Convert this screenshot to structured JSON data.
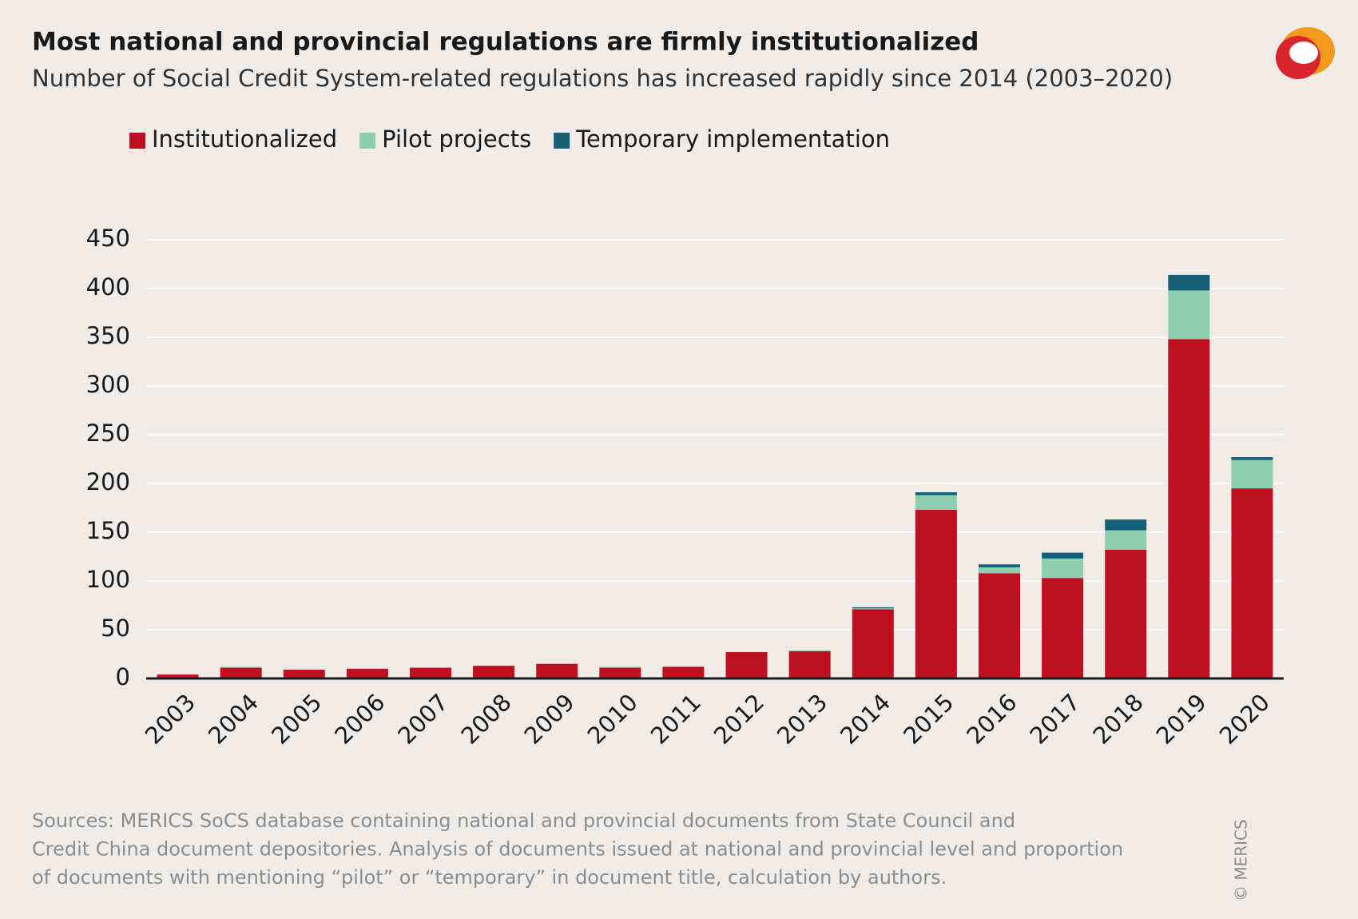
{
  "chart_data": {
    "type": "stacked_bar",
    "title": "Most national and provincial regulations are firmly institutionalized",
    "subtitle": "Number of Social Credit System-related regulations has increased rapidly since 2014 (2003–2020)",
    "categories": [
      "2003",
      "2004",
      "2005",
      "2006",
      "2007",
      "2008",
      "2009",
      "2010",
      "2011",
      "2012",
      "2013",
      "2014",
      "2015",
      "2016",
      "2017",
      "2018",
      "2019",
      "2020"
    ],
    "series": [
      {
        "name": "Institutionalized",
        "color": "#c00f20",
        "values": [
          4,
          11,
          9,
          10,
          11,
          13,
          15,
          11,
          12,
          27,
          28,
          71,
          173,
          108,
          103,
          132,
          348,
          195
        ]
      },
      {
        "name": "Pilot projects",
        "color": "#8dcdb0",
        "values": [
          0,
          1,
          0,
          0,
          0,
          0,
          0,
          1,
          0,
          0,
          1,
          1,
          15,
          6,
          20,
          20,
          50,
          29
        ]
      },
      {
        "name": "Temporary implementation",
        "color": "#135f78",
        "values": [
          0,
          0,
          0,
          0,
          0,
          0,
          0,
          0,
          0,
          0,
          0,
          1,
          3,
          3,
          6,
          11,
          16,
          3
        ]
      }
    ],
    "ylim": [
      0,
      450
    ],
    "yticks": [
      0,
      50,
      100,
      150,
      200,
      250,
      300,
      350,
      400,
      450
    ],
    "grid": true,
    "legend": "top-left",
    "source": [
      "Sources: MERICS SoCS database containing national and provincial documents from State Council and",
      "Credit China document depositories. Analysis of documents issued at national and provincial level and proportion",
      "of documents with mentioning “pilot” or “temporary” in document title, calculation by authors."
    ],
    "credit": "© MERICS"
  }
}
